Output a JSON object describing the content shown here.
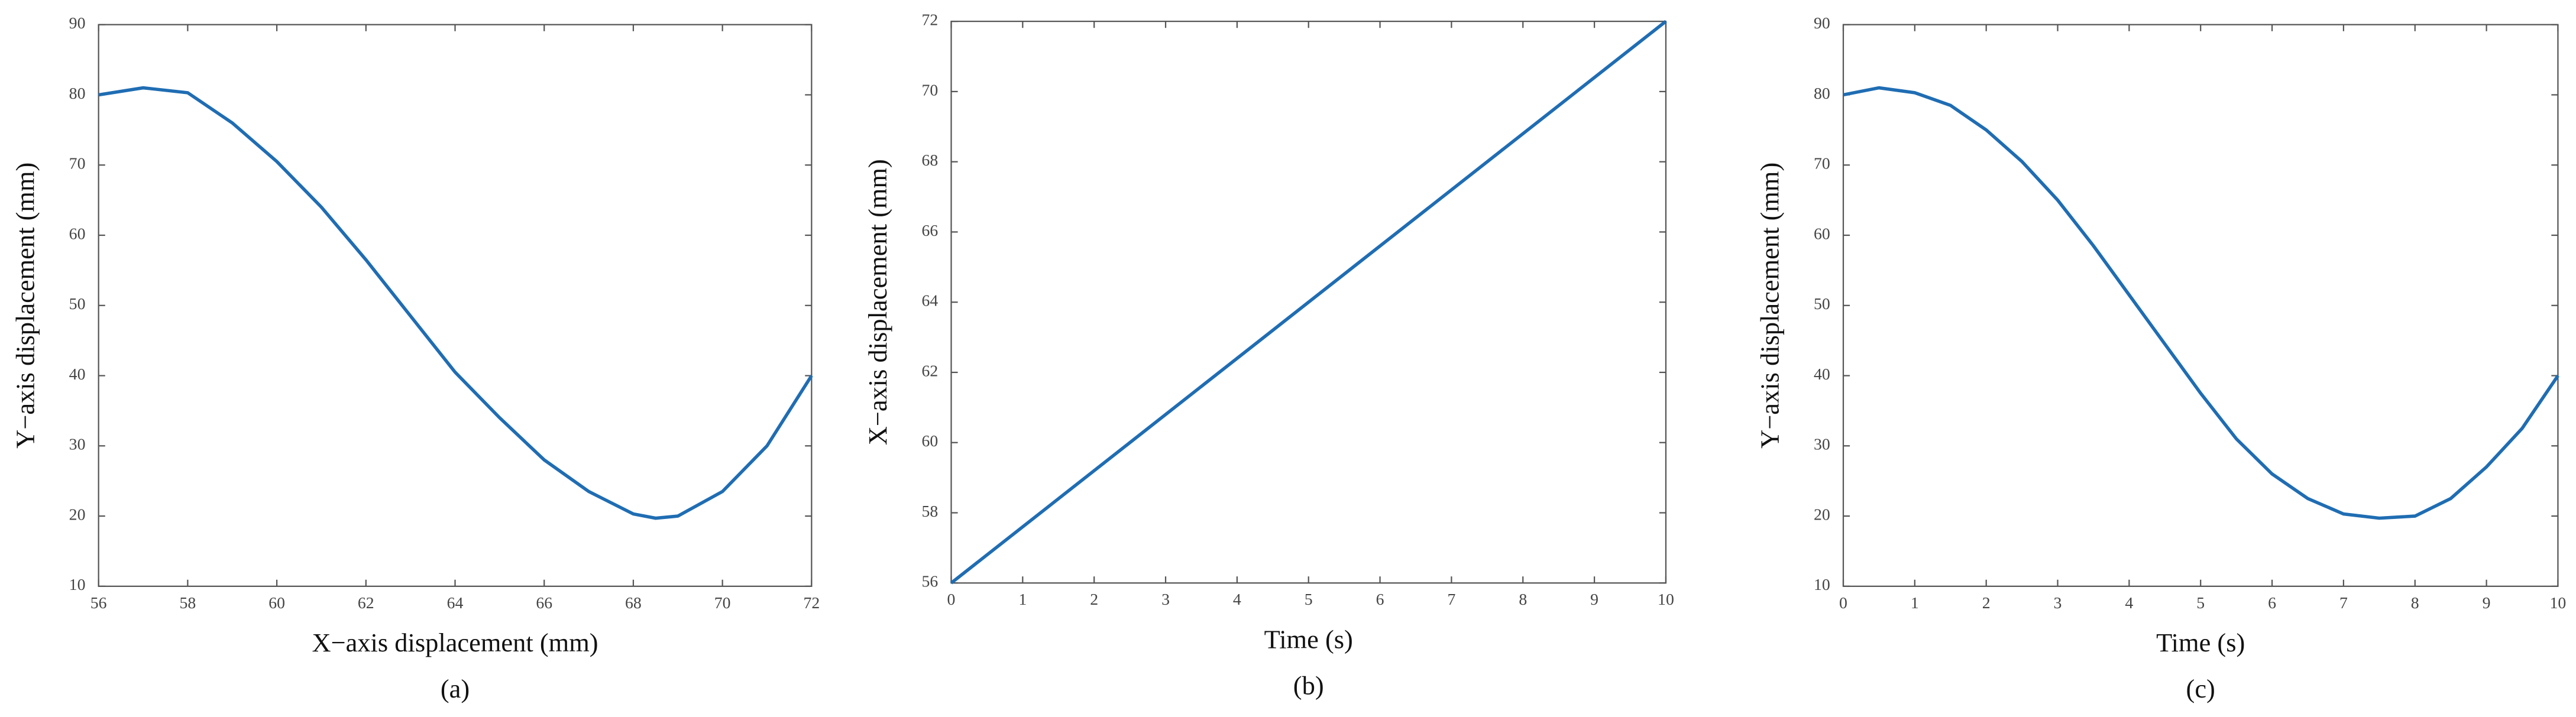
{
  "chart_data": [
    {
      "type": "line",
      "xlabel": "X−axis displacement (mm)",
      "ylabel": "Y−axis displacement (mm)",
      "caption": "(a)",
      "x": [
        56,
        57,
        58,
        59,
        60,
        61,
        62,
        63,
        64,
        65,
        66,
        67,
        68,
        68.5,
        69,
        70,
        71,
        72
      ],
      "values": [
        80,
        81,
        80.3,
        76,
        70.5,
        64,
        56.5,
        48.5,
        40.5,
        34,
        28,
        23.5,
        20.3,
        19.7,
        20,
        23.5,
        30,
        40
      ],
      "color": "#1f6db3",
      "xlim": [
        56,
        72
      ],
      "xticks": [
        56,
        58,
        60,
        62,
        64,
        66,
        68,
        70,
        72
      ],
      "ylim": [
        10,
        90
      ],
      "yticks": [
        10,
        20,
        30,
        40,
        50,
        60,
        70,
        80,
        90
      ]
    },
    {
      "type": "line",
      "xlabel": "Time (s)",
      "ylabel": "X−axis displacement (mm)",
      "caption": "(b)",
      "x": [
        0,
        10
      ],
      "values": [
        56,
        72
      ],
      "color": "#1f6db3",
      "xlim": [
        0,
        10
      ],
      "xticks": [
        0,
        1,
        2,
        3,
        4,
        5,
        6,
        7,
        8,
        9,
        10
      ],
      "ylim": [
        56,
        72
      ],
      "yticks": [
        56,
        58,
        60,
        62,
        64,
        66,
        68,
        70,
        72
      ]
    },
    {
      "type": "line",
      "xlabel": "Time (s)",
      "ylabel": "Y−axis displacement (mm)",
      "caption": "(c)",
      "x": [
        0,
        0.5,
        1,
        1.5,
        2,
        2.5,
        3,
        3.5,
        4,
        4.5,
        5,
        5.5,
        6,
        6.5,
        7,
        7.5,
        8,
        8.5,
        9,
        9.5,
        10
      ],
      "values": [
        80,
        81,
        80.3,
        78.5,
        75,
        70.5,
        65,
        58.5,
        51.5,
        44.5,
        37.5,
        31,
        26,
        22.5,
        20.3,
        19.7,
        20,
        22.5,
        27,
        32.5,
        40
      ],
      "color": "#1f6db3",
      "xlim": [
        0,
        10
      ],
      "xticks": [
        0,
        1,
        2,
        3,
        4,
        5,
        6,
        7,
        8,
        9,
        10
      ],
      "ylim": [
        10,
        90
      ],
      "yticks": [
        10,
        20,
        30,
        40,
        50,
        60,
        70,
        80,
        90
      ]
    }
  ]
}
